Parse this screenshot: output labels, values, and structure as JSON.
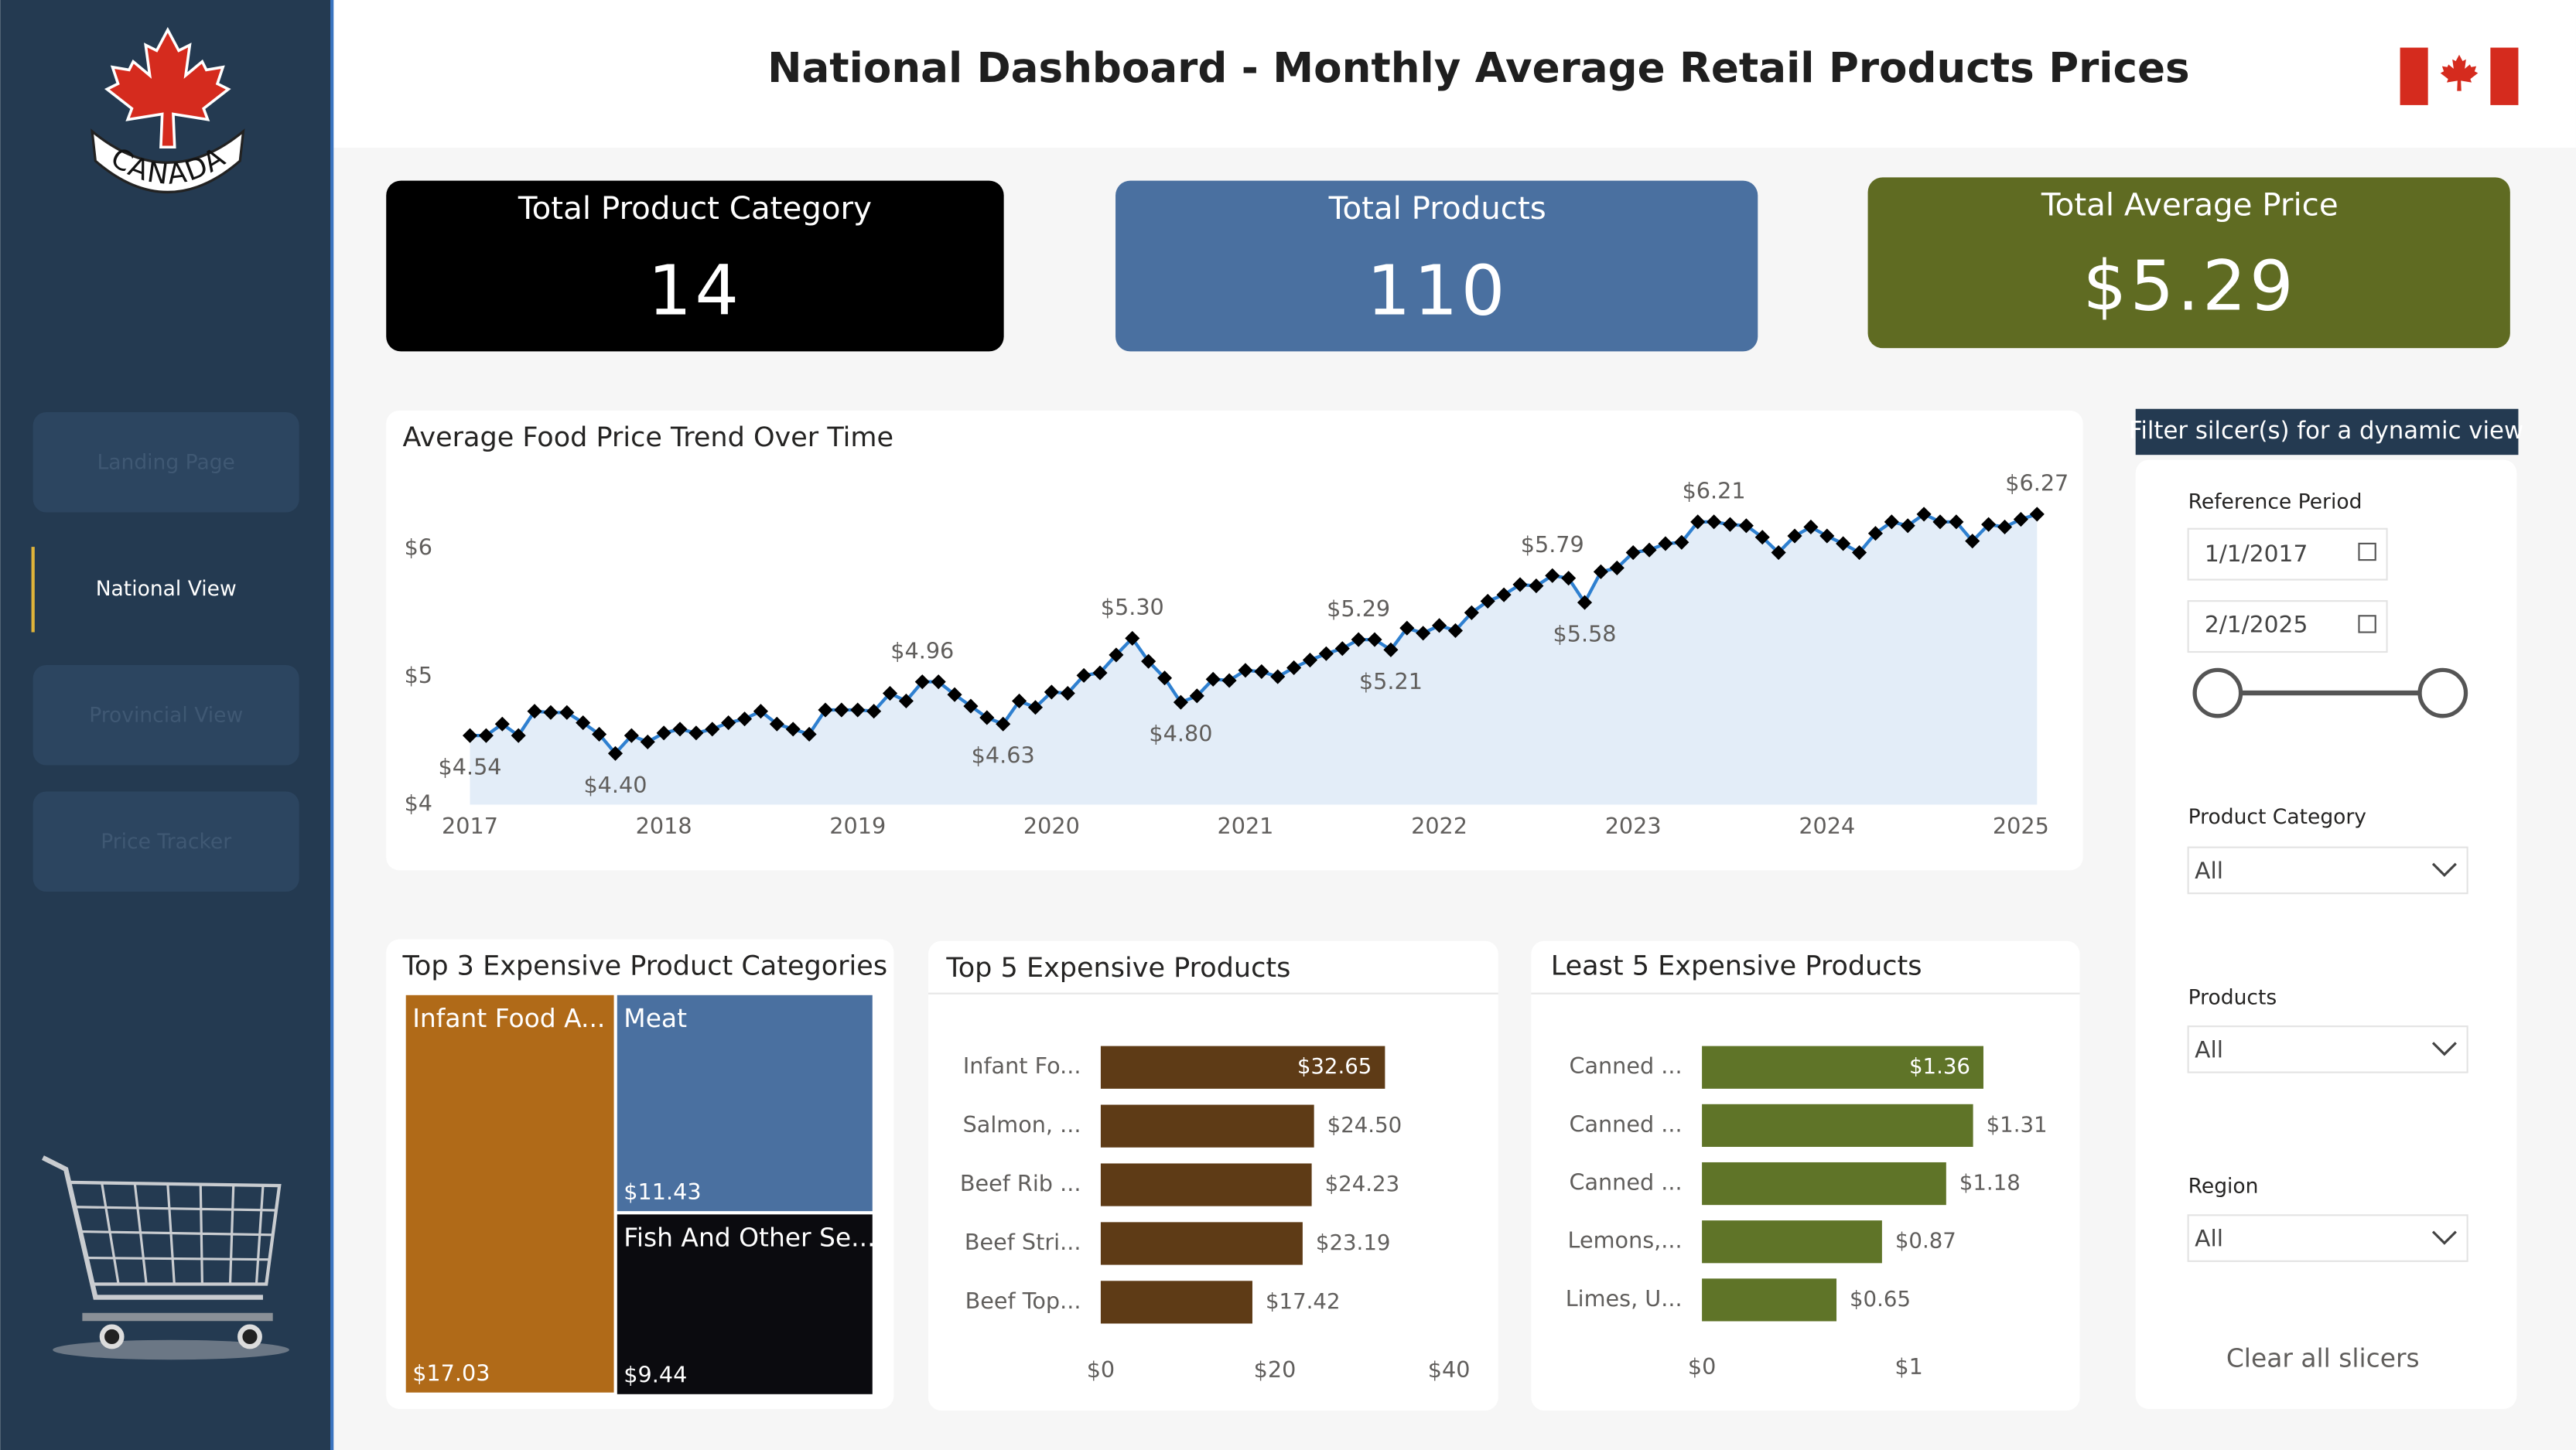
{
  "header": {
    "title": "National Dashboard - Monthly Average Retail Products Prices",
    "logo_text": "CANADA"
  },
  "nav": [
    "Landing Page",
    "National View",
    "Provincial View",
    "Price Tracker"
  ],
  "kpis": [
    {
      "title": "Total Product Category",
      "value": "14"
    },
    {
      "title": "Total Products",
      "value": "110"
    },
    {
      "title": "Total Average Price",
      "value": "$5.29"
    }
  ],
  "chart_data": [
    {
      "type": "line",
      "title": "Average Food Price Trend Over Time",
      "color": "#2f80d0",
      "marker_color": "#000000",
      "area_color": "#e3edf8",
      "x": [
        "2017-01",
        "2017-02",
        "2017-03",
        "2017-04",
        "2017-05",
        "2017-06",
        "2017-07",
        "2017-08",
        "2017-09",
        "2017-10",
        "2017-11",
        "2017-12",
        "2018-01",
        "2018-02",
        "2018-03",
        "2018-04",
        "2018-05",
        "2018-06",
        "2018-07",
        "2018-08",
        "2018-09",
        "2018-10",
        "2018-11",
        "2018-12",
        "2019-01",
        "2019-02",
        "2019-03",
        "2019-04",
        "2019-05",
        "2019-06",
        "2019-07",
        "2019-08",
        "2019-09",
        "2019-10",
        "2019-11",
        "2019-12",
        "2020-01",
        "2020-02",
        "2020-03",
        "2020-04",
        "2020-05",
        "2020-06",
        "2020-07",
        "2020-08",
        "2020-09",
        "2020-10",
        "2020-11",
        "2020-12",
        "2021-01",
        "2021-02",
        "2021-03",
        "2021-04",
        "2021-05",
        "2021-06",
        "2021-07",
        "2021-08",
        "2021-09",
        "2021-10",
        "2021-11",
        "2021-12",
        "2022-01",
        "2022-02",
        "2022-03",
        "2022-04",
        "2022-05",
        "2022-06",
        "2022-07",
        "2022-08",
        "2022-09",
        "2022-10",
        "2022-11",
        "2022-12",
        "2023-01",
        "2023-02",
        "2023-03",
        "2023-04",
        "2023-05",
        "2023-06",
        "2023-07",
        "2023-08",
        "2023-09",
        "2023-10",
        "2023-11",
        "2023-12",
        "2024-01",
        "2024-02",
        "2024-03",
        "2024-04",
        "2024-05",
        "2024-06",
        "2024-07",
        "2024-08",
        "2024-09",
        "2024-10",
        "2024-11",
        "2024-12",
        "2025-01",
        "2025-02"
      ],
      "values": [
        4.54,
        4.54,
        4.63,
        4.54,
        4.73,
        4.72,
        4.72,
        4.64,
        4.55,
        4.4,
        4.54,
        4.49,
        4.56,
        4.59,
        4.56,
        4.59,
        4.64,
        4.67,
        4.73,
        4.63,
        4.59,
        4.55,
        4.74,
        4.74,
        4.74,
        4.73,
        4.87,
        4.81,
        4.96,
        4.96,
        4.86,
        4.77,
        4.68,
        4.63,
        4.81,
        4.76,
        4.88,
        4.87,
        5.01,
        5.03,
        5.17,
        5.3,
        5.12,
        4.99,
        4.8,
        4.85,
        4.98,
        4.97,
        5.05,
        5.04,
        5.0,
        5.07,
        5.13,
        5.18,
        5.22,
        5.29,
        5.29,
        5.21,
        5.38,
        5.34,
        5.4,
        5.36,
        5.5,
        5.59,
        5.64,
        5.72,
        5.71,
        5.79,
        5.77,
        5.58,
        5.82,
        5.85,
        5.97,
        5.99,
        6.04,
        6.05,
        6.21,
        6.21,
        6.19,
        6.18,
        6.09,
        5.97,
        6.1,
        6.17,
        6.1,
        6.04,
        5.97,
        6.12,
        6.21,
        6.18,
        6.27,
        6.21,
        6.21,
        6.06,
        6.19,
        6.17,
        6.23,
        6.27
      ],
      "value_labels": [
        "$4.54",
        null,
        null,
        null,
        null,
        null,
        null,
        null,
        null,
        "$4.40",
        null,
        null,
        null,
        null,
        null,
        null,
        null,
        null,
        null,
        null,
        null,
        null,
        null,
        null,
        null,
        null,
        null,
        null,
        "$4.96",
        null,
        null,
        null,
        null,
        "$4.63",
        null,
        null,
        null,
        null,
        null,
        null,
        null,
        "$5.30",
        null,
        null,
        "$4.80",
        null,
        null,
        null,
        null,
        null,
        null,
        null,
        null,
        null,
        null,
        "$5.29",
        null,
        "$5.21",
        null,
        null,
        null,
        null,
        null,
        null,
        null,
        null,
        null,
        "$5.79",
        null,
        "$5.58",
        null,
        null,
        null,
        null,
        null,
        null,
        null,
        "$6.21",
        null,
        null,
        null,
        null,
        null,
        null,
        null,
        null,
        null,
        null,
        null,
        null,
        null,
        null,
        null,
        null,
        null,
        null,
        null,
        "$6.27"
      ],
      "xlim": [
        "2017-01",
        "2025-02"
      ],
      "xticks": [
        2017,
        2018,
        2019,
        2020,
        2021,
        2022,
        2023,
        2024,
        2025
      ],
      "ylim": [
        4,
        6.4
      ],
      "yticks": [
        {
          "value": 4,
          "label": "$4"
        },
        {
          "value": 5,
          "label": "$5"
        },
        {
          "value": 6,
          "label": "$6"
        }
      ]
    },
    {
      "type": "treemap",
      "title": "Top 3 Expensive Product Categories",
      "categories": [
        "Infant Food A...",
        "Meat",
        "Fish And Other Se..."
      ],
      "values": [
        17.03,
        11.43,
        9.44
      ],
      "value_labels": [
        "$17.03",
        "$11.43",
        "$9.44"
      ],
      "colors": [
        "#b06a18",
        "#4a70a0",
        "#0b0b0f"
      ]
    },
    {
      "type": "bar",
      "orientation": "horizontal",
      "title": "Top 5 Expensive Products",
      "categories": [
        "Infant Fo...",
        "Salmon, ...",
        "Beef Rib ...",
        "Beef Stri...",
        "Beef Top..."
      ],
      "values": [
        32.65,
        24.5,
        24.23,
        23.19,
        17.42
      ],
      "value_labels": [
        "$32.65",
        "$24.50",
        "$24.23",
        "$23.19",
        "$17.42"
      ],
      "color": "#5e3b16",
      "xlim": [
        0,
        40
      ],
      "xticks": [
        {
          "value": 0,
          "label": "$0"
        },
        {
          "value": 20,
          "label": "$20"
        },
        {
          "value": 40,
          "label": "$40"
        }
      ]
    },
    {
      "type": "bar",
      "orientation": "horizontal",
      "title": "Least 5 Expensive Products",
      "categories": [
        "Canned ...",
        "Canned ...",
        "Canned ...",
        "Lemons,...",
        "Limes, U..."
      ],
      "values": [
        1.36,
        1.31,
        1.18,
        0.87,
        0.65
      ],
      "value_labels": [
        "$1.36",
        "$1.31",
        "$1.18",
        "$0.87",
        "$0.65"
      ],
      "color": "#5f7428",
      "xlim": [
        0,
        1.75
      ],
      "xticks": [
        {
          "value": 0,
          "label": "$0"
        },
        {
          "value": 1,
          "label": "$1"
        }
      ]
    }
  ],
  "slicers": {
    "heading": "Filter silcer(s) for a dynamic view",
    "reference_period": {
      "label": "Reference Period",
      "start": "1/1/2017",
      "end": "2/1/2025"
    },
    "product_category": {
      "label": "Product Category",
      "value": "All"
    },
    "products": {
      "label": "Products",
      "value": "All"
    },
    "region": {
      "label": "Region",
      "value": "All"
    },
    "clear": "Clear all slicers"
  }
}
